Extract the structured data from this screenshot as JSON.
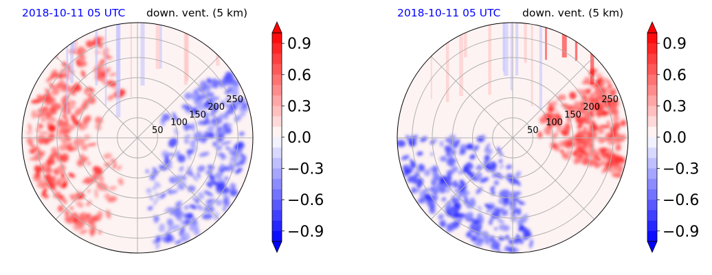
{
  "chart_data": [
    {
      "type": "heatmap",
      "projection": "polar",
      "title_left": "2018-10-11 05 UTC",
      "title_right": "down. vent. (5 km)",
      "title_left_color": "#0000ff",
      "radial_ticks": [
        "50",
        "100",
        "150",
        "200",
        "250"
      ],
      "radial_tick_values": [
        50,
        100,
        150,
        200,
        250
      ],
      "rmax": 287,
      "grid": true,
      "colorbar": {
        "ticks": [
          "0.9",
          "0.6",
          "0.3",
          "0.0",
          "−0.3",
          "−0.6",
          "−0.9"
        ],
        "tick_values": [
          0.9,
          0.6,
          0.3,
          0.0,
          -0.3,
          -0.6,
          -0.9
        ],
        "range": [
          -1.0,
          1.0
        ],
        "colormap": "bwr",
        "extend": "both"
      },
      "field_regions": [
        {
          "label": "positive band west",
          "angle_from_deg": 110,
          "angle_to_deg": 250,
          "r_from": 80,
          "r_to": 270,
          "value": 0.9
        },
        {
          "label": "negative patches east",
          "angle_from_deg": -80,
          "angle_to_deg": 40,
          "r_from": 60,
          "r_to": 280,
          "value": -0.8
        }
      ]
    },
    {
      "type": "heatmap",
      "projection": "polar",
      "title_left": "2018-10-11 05 UTC",
      "title_right": "down. vent. (5 km)",
      "title_left_color": "#0000ff",
      "radial_ticks": [
        "50",
        "100",
        "150",
        "200",
        "250"
      ],
      "radial_tick_values": [
        50,
        100,
        150,
        200,
        250
      ],
      "rmax": 287,
      "grid": true,
      "colorbar": {
        "ticks": [
          "0.9",
          "0.6",
          "0.3",
          "0.0",
          "−0.3",
          "−0.6",
          "−0.9"
        ],
        "tick_values": [
          0.9,
          0.6,
          0.3,
          0.0,
          -0.3,
          -0.6,
          -0.9
        ],
        "range": [
          -1.0,
          1.0
        ],
        "colormap": "bwr",
        "extend": "both"
      },
      "field_regions": [
        {
          "label": "negative region southwest",
          "angle_from_deg": 180,
          "angle_to_deg": 280,
          "r_from": 40,
          "r_to": 280,
          "value": -0.9
        },
        {
          "label": "positive cells east",
          "angle_from_deg": -20,
          "angle_to_deg": 40,
          "r_from": 60,
          "r_to": 280,
          "value": 0.9
        }
      ]
    }
  ]
}
